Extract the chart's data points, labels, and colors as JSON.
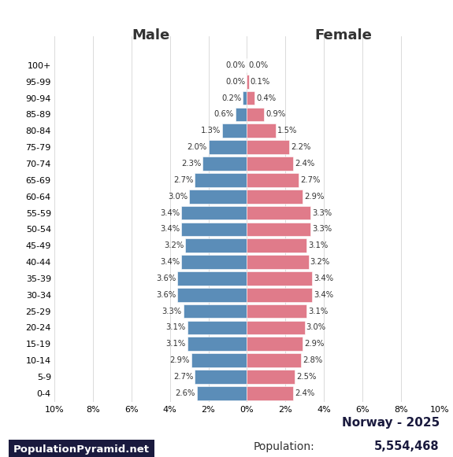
{
  "age_groups": [
    "0-4",
    "5-9",
    "10-14",
    "15-19",
    "20-24",
    "25-29",
    "30-34",
    "35-39",
    "40-44",
    "45-49",
    "50-54",
    "55-59",
    "60-64",
    "65-69",
    "70-74",
    "75-79",
    "80-84",
    "85-89",
    "90-94",
    "95-99",
    "100+"
  ],
  "male": [
    2.6,
    2.7,
    2.9,
    3.1,
    3.1,
    3.3,
    3.6,
    3.6,
    3.4,
    3.2,
    3.4,
    3.4,
    3.0,
    2.7,
    2.3,
    2.0,
    1.3,
    0.6,
    0.2,
    0.0,
    0.0
  ],
  "female": [
    2.4,
    2.5,
    2.8,
    2.9,
    3.0,
    3.1,
    3.4,
    3.4,
    3.2,
    3.1,
    3.3,
    3.3,
    2.9,
    2.7,
    2.4,
    2.2,
    1.5,
    0.9,
    0.4,
    0.1,
    0.0
  ],
  "male_color": "#5b8db8",
  "female_color": "#e07b8a",
  "background_color": "#ffffff",
  "title": "Norway - 2025",
  "population_value": "5,554,468",
  "male_label": "Male",
  "female_label": "Female",
  "xlim": 10.0,
  "watermark": "PopulationPyramid.net",
  "dark_navy": "#1a1a3e"
}
